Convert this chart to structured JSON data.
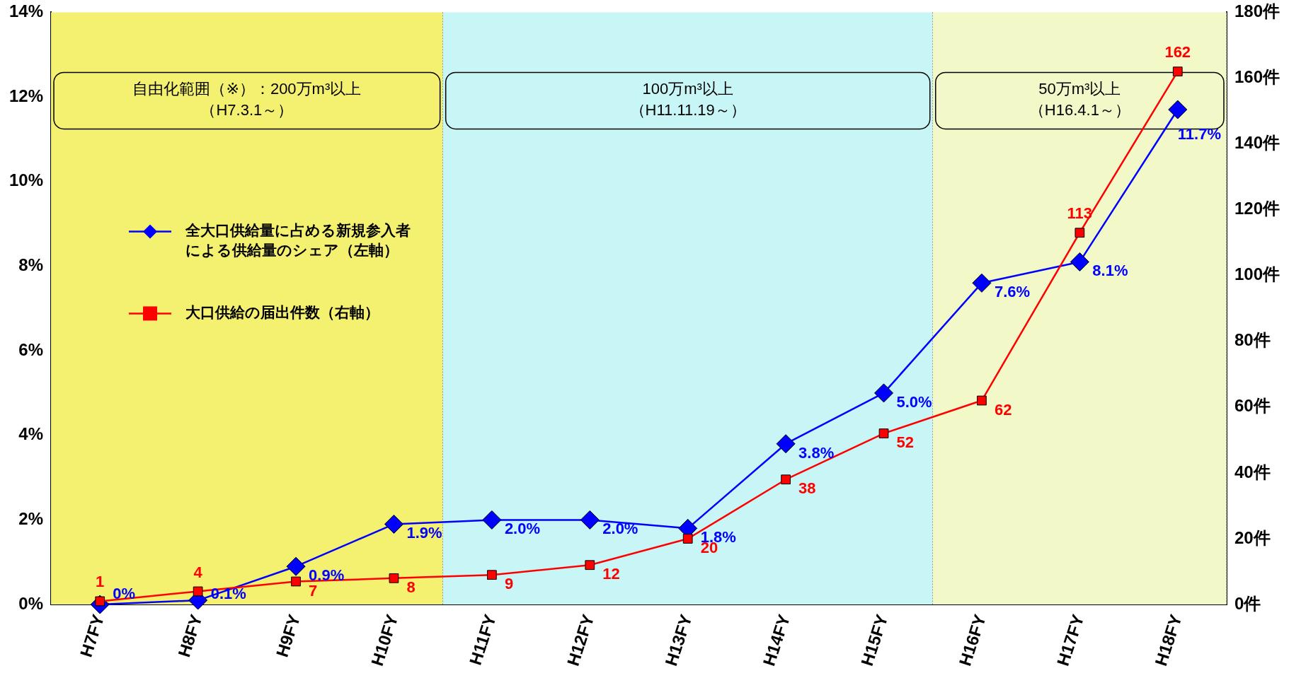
{
  "chart_data": {
    "type": "line",
    "categories": [
      "H7FY",
      "H8FY",
      "H9FY",
      "H10FY",
      "H11FY",
      "H12FY",
      "H13FY",
      "H14FY",
      "H15FY",
      "H16FY",
      "H17FY",
      "H18FY"
    ],
    "series": [
      {
        "name": "全大口供給量に占める新規参入者による供給量のシェア（左軸）",
        "color": "#0000ff",
        "marker": "diamond",
        "values": [
          0,
          0.1,
          0.9,
          1.9,
          2.0,
          2.0,
          1.8,
          3.8,
          5.0,
          7.6,
          8.1,
          11.7
        ],
        "value_labels": [
          "0%",
          "0.1%",
          "0.9%",
          "1.9%",
          "2.0%",
          "2.0%",
          "1.8%",
          "3.8%",
          "5.0%",
          "7.6%",
          "8.1%",
          "11.7%"
        ]
      },
      {
        "name": "大口供給の届出件数（右軸）",
        "color": "#ff0000",
        "marker": "square",
        "axis": "y2",
        "values": [
          1,
          4,
          7,
          8,
          9,
          12,
          20,
          38,
          52,
          62,
          113,
          162
        ],
        "value_labels": [
          "1",
          "4",
          "7",
          "8",
          "9",
          "12",
          "20",
          "38",
          "52",
          "62",
          "113",
          "162"
        ]
      }
    ],
    "ylim": [
      0,
      14
    ],
    "yticks": [
      {
        "value": 0,
        "label": "0%"
      },
      {
        "value": 2,
        "label": "2%"
      },
      {
        "value": 4,
        "label": "4%"
      },
      {
        "value": 6,
        "label": "6%"
      },
      {
        "value": 8,
        "label": "8%"
      },
      {
        "value": 10,
        "label": "10%"
      },
      {
        "value": 12,
        "label": "12%"
      },
      {
        "value": 14,
        "label": "14%"
      }
    ],
    "y2lim": [
      0,
      180
    ],
    "y2ticks": [
      {
        "value": 0,
        "label": "0件"
      },
      {
        "value": 20,
        "label": "20件"
      },
      {
        "value": 40,
        "label": "40件"
      },
      {
        "value": 60,
        "label": "60件"
      },
      {
        "value": 80,
        "label": "80件"
      },
      {
        "value": 100,
        "label": "100件"
      },
      {
        "value": 120,
        "label": "120件"
      },
      {
        "value": 140,
        "label": "140件"
      },
      {
        "value": 160,
        "label": "160件"
      },
      {
        "value": 180,
        "label": "180件"
      }
    ],
    "bands": [
      {
        "axis": "x",
        "from": "H7FY",
        "to": "H10FY",
        "label": "自由化範囲（※）：200万m³以上（H7.3.1～）",
        "color": "#f4f070"
      },
      {
        "axis": "x",
        "from": "H11FY",
        "to": "H15FY",
        "label": "100万m³以上（H11.11.19～）",
        "color": "#c8f6f6"
      },
      {
        "axis": "x",
        "from": "H16FY",
        "to": "H18FY",
        "label": "50万m³以上（H16.4.1～）",
        "color": "#f2f8c8"
      }
    ],
    "grid": false,
    "legend": "left",
    "line_style": "solid"
  }
}
